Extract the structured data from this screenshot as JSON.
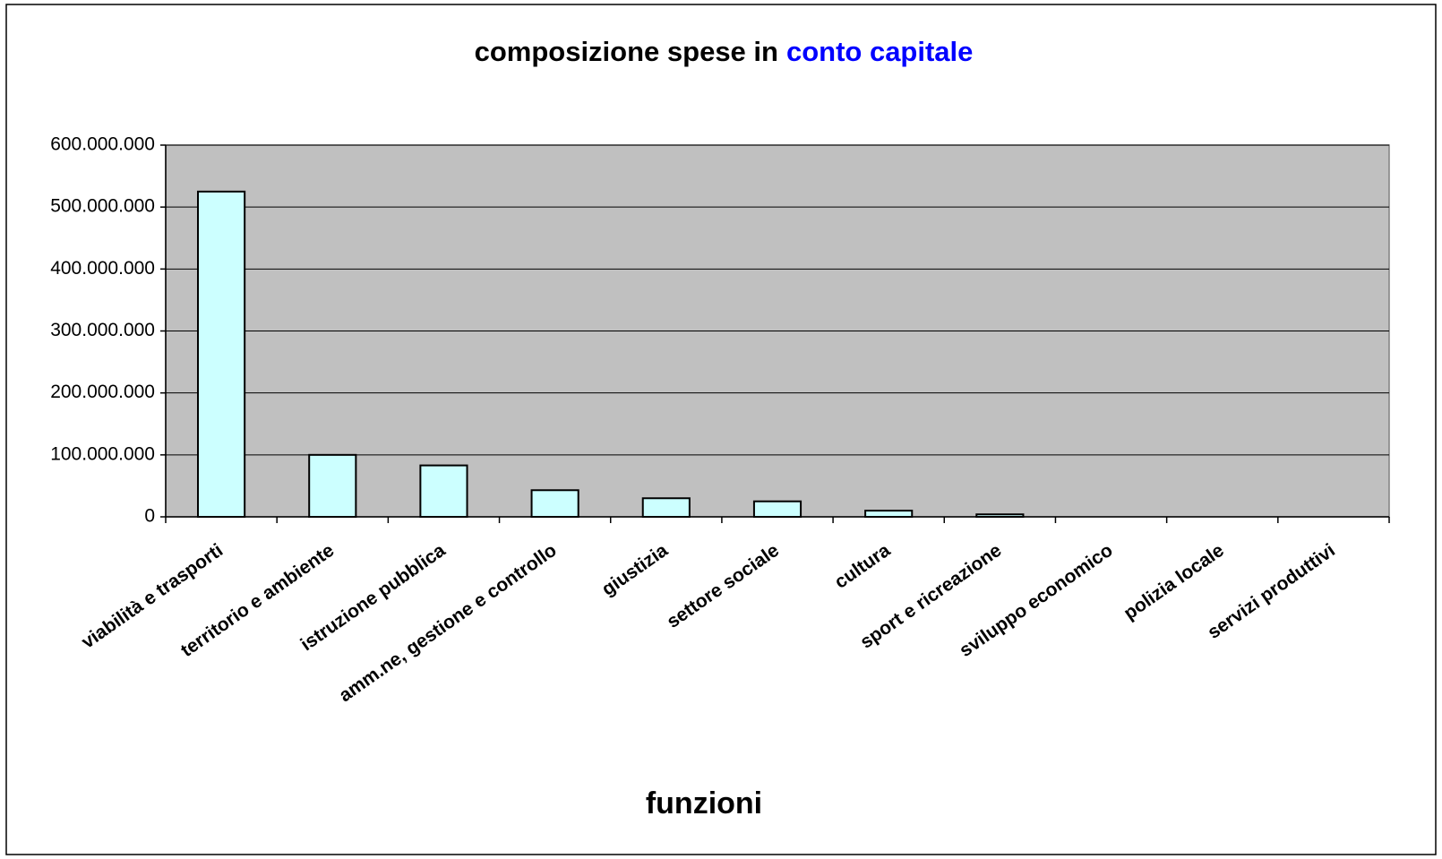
{
  "chart_data": {
    "type": "bar",
    "title": [
      "composizione spese in",
      "conto capitale"
    ],
    "title_colors": [
      "#000000",
      "#0000ff"
    ],
    "x_label": "funzioni",
    "categories": [
      "viabilità e trasporti",
      "territorio e ambiente",
      "istruzione pubblica",
      "amm.ne, gestione e controllo",
      "giustizia",
      "settore sociale",
      "cultura",
      "sport e ricreazione",
      "sviluppo economico",
      "polizia locale",
      "servizi produttivi"
    ],
    "values": [
      525000000,
      100000000,
      83000000,
      43000000,
      30000000,
      25000000,
      10000000,
      4000000,
      0,
      0,
      0
    ],
    "color": "#ccffff",
    "ylim": [
      0,
      600000000
    ],
    "yticks": [
      0,
      {
        "value": 100000000,
        "label": "100.000.000"
      },
      {
        "value": 200000000,
        "label": "200.000.000"
      },
      {
        "value": 300000000,
        "label": "300.000.000"
      },
      {
        "value": 400000000,
        "label": "400.000.000"
      },
      {
        "value": 500000000,
        "label": "500.000.000"
      },
      {
        "value": 600000000,
        "label": "600.000.000"
      }
    ],
    "grid": true,
    "plot_background": "#c0c0c0"
  }
}
